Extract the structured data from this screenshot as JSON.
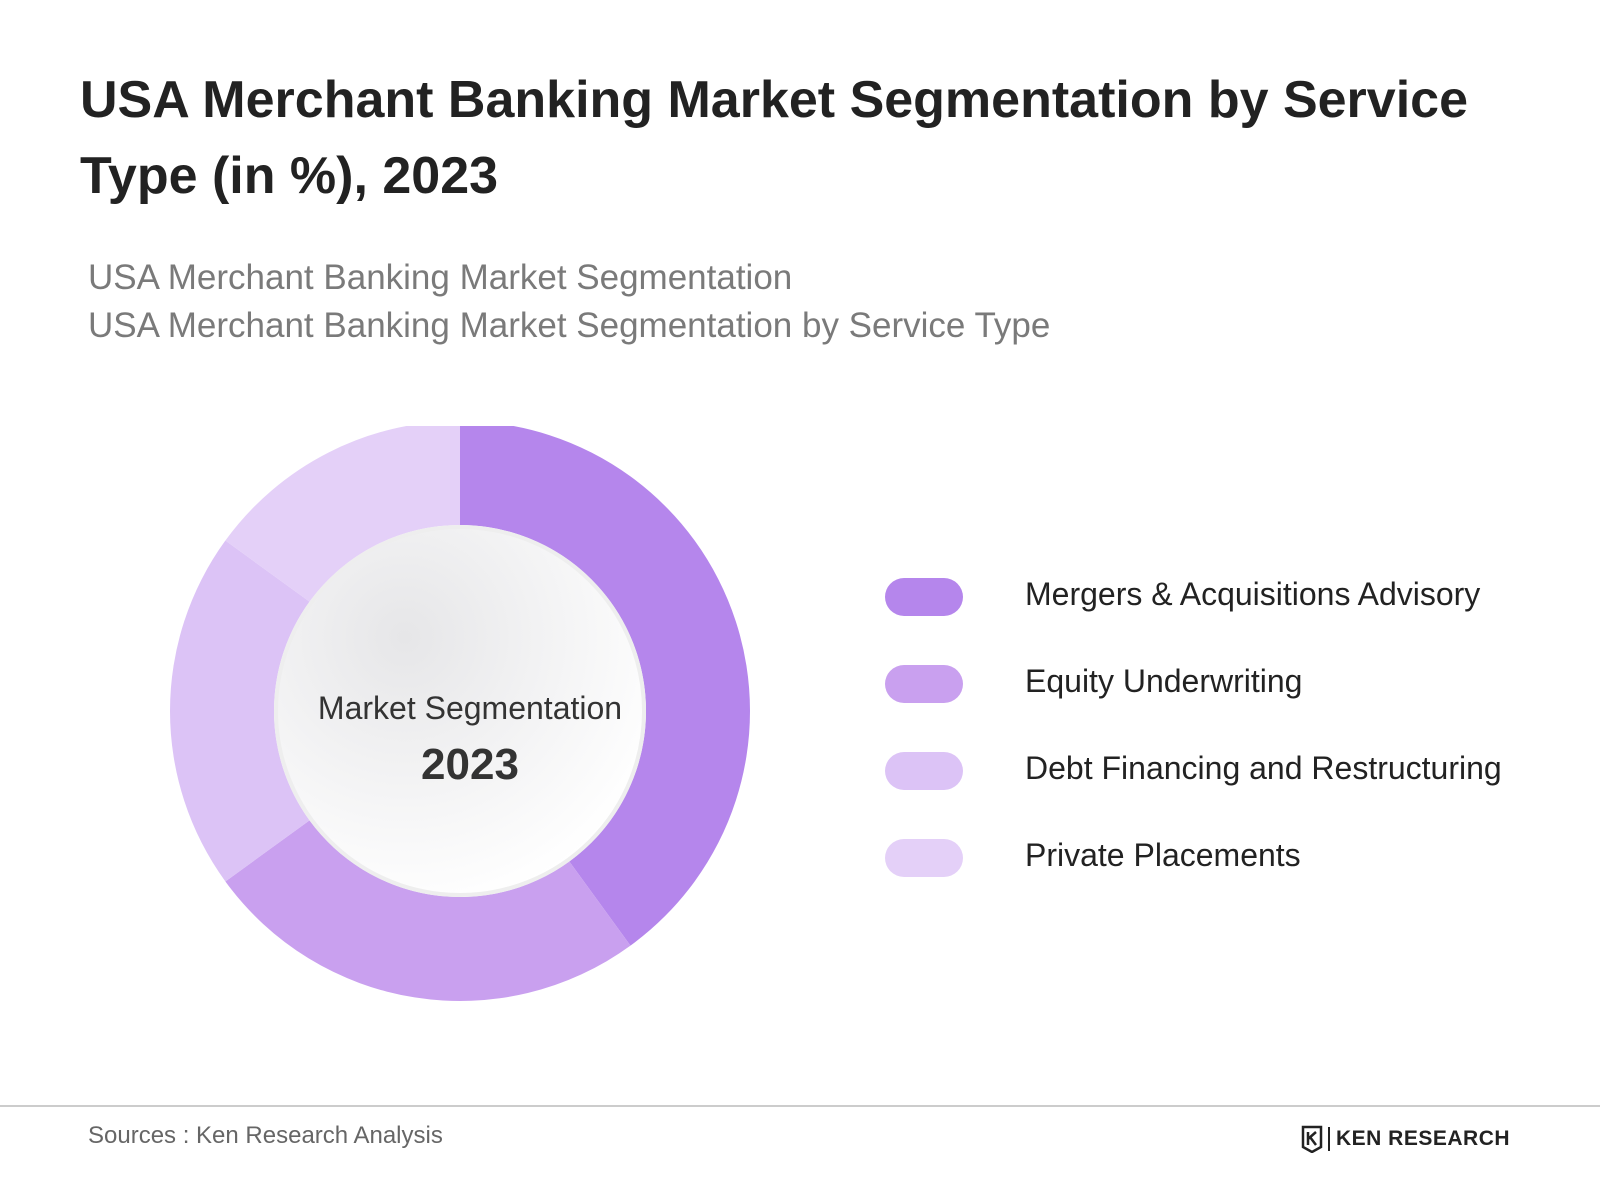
{
  "title": "USA Merchant Banking Market Segmentation by Service Type (in %), 2023",
  "subtitle_line1": "USA Merchant Banking Market Segmentation",
  "subtitle_line2": "USA Merchant Banking Market Segmentation by Service Type",
  "center": {
    "label": "Market Segmentation",
    "year": "2023"
  },
  "chart_data": {
    "type": "pie",
    "donut": true,
    "title": "USA Merchant Banking Market Segmentation by Service Type (in %), 2023",
    "categories": [
      "Mergers & Acquisitions Advisory",
      "Equity Underwriting",
      "Debt Financing and Restructuring",
      "Private Placements"
    ],
    "values": [
      40,
      25,
      20,
      15
    ],
    "colors": [
      "#b586ec",
      "#c9a0ef",
      "#dcc3f6",
      "#e4d0f8"
    ],
    "legend_position": "right"
  },
  "footer": {
    "source": "Sources : Ken Research Analysis",
    "brand": "KEN RESEARCH"
  }
}
